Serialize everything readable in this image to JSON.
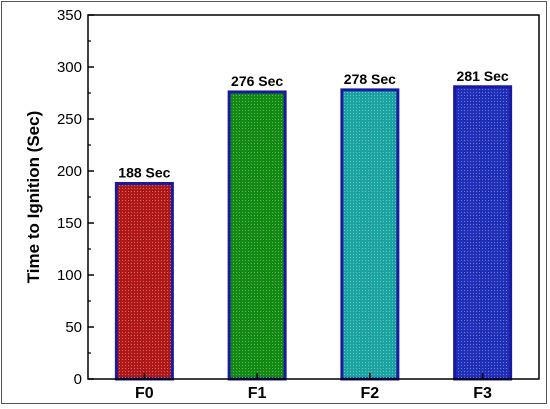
{
  "chart_data": {
    "type": "bar",
    "title": "",
    "xlabel": "",
    "ylabel": "Time to Ignition (Sec)",
    "categories": [
      "F0",
      "F1",
      "F2",
      "F3"
    ],
    "values": [
      188,
      276,
      278,
      281
    ],
    "data_labels": [
      "188 Sec",
      "276 Sec",
      "278 Sec",
      "281 Sec"
    ],
    "ylim": [
      0,
      350
    ],
    "yticks": [
      0,
      50,
      100,
      150,
      200,
      250,
      300,
      350
    ],
    "grid": false,
    "legend": "none",
    "colors": {
      "bar_fills": [
        "#b01818",
        "#128a12",
        "#1aa3a0",
        "#1f2fb8"
      ],
      "bar_border": "#1a1aa0",
      "axis": "#000000"
    }
  }
}
